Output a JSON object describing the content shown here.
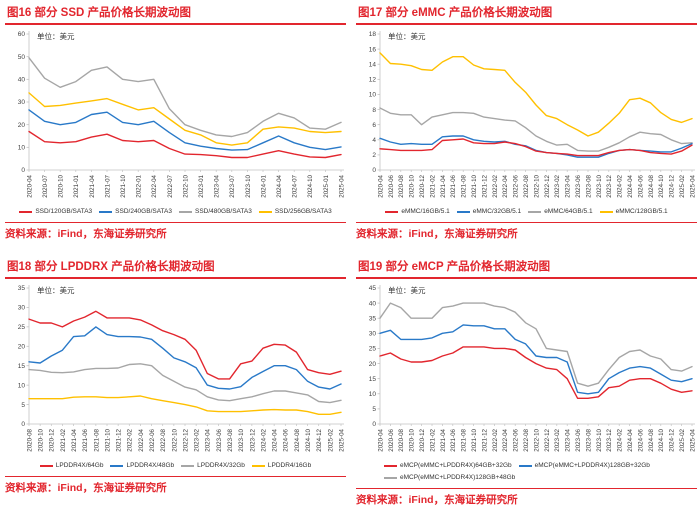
{
  "colors": {
    "accent_red": "#e2262e",
    "axis": "#c3c3c3",
    "tick_text": "#404040",
    "lines": {
      "red": "#e2262e",
      "blue": "#2979c8",
      "gray": "#a6a6a6",
      "yellow": "#ffc000"
    }
  },
  "chart_data": [
    {
      "id": "fig16",
      "type": "line",
      "title": "图16  部分 SSD 产品价格长期波动图",
      "unit": "单位：美元",
      "source": "资料来源：iFind，东海证券研究所",
      "ylim": [
        0,
        60
      ],
      "ytick_step": 10,
      "legend_position": "bottom-center",
      "grid": false,
      "categories": [
        "2020-04",
        "2020-07",
        "2020-10",
        "2021-01",
        "2021-04",
        "2021-07",
        "2021-10",
        "2022-01",
        "2022-04",
        "2022-07",
        "2022-10",
        "2023-01",
        "2023-04",
        "2023-07",
        "2023-10",
        "2024-01",
        "2024-04",
        "2024-07",
        "2024-10",
        "2025-01",
        "2025-04"
      ],
      "series": [
        {
          "name": "SSD/120GB/SATA3",
          "color": "red",
          "values": [
            17,
            12.5,
            12,
            12.5,
            14.5,
            15.8,
            13,
            12.5,
            13,
            9.5,
            7,
            6.8,
            6.3,
            5.5,
            5.5,
            7,
            8.5,
            7,
            5.8,
            5.5,
            6.8
          ]
        },
        {
          "name": "SSD/240GB/SATA3",
          "color": "blue",
          "values": [
            26.5,
            21.5,
            20,
            21,
            24.5,
            25.5,
            21,
            20,
            21.5,
            16.5,
            12,
            10.5,
            9.5,
            8.8,
            9,
            12,
            15,
            12,
            10,
            9,
            10.2
          ]
        },
        {
          "name": "SSD/480GB/SATA3",
          "color": "gray",
          "values": [
            49.5,
            40.5,
            36.5,
            39,
            44,
            45.5,
            40,
            39,
            40,
            27,
            20,
            17.5,
            15.5,
            14.8,
            16.5,
            21.5,
            25,
            23,
            18.5,
            18,
            21
          ]
        },
        {
          "name": "SSD/256GB/SATA3",
          "color": "yellow",
          "values": [
            34,
            28,
            28.5,
            29.5,
            30.5,
            31.5,
            29,
            26.5,
            27.5,
            22.5,
            17.5,
            15.5,
            12,
            11,
            12,
            18,
            19,
            18.5,
            17,
            16.5,
            17
          ]
        }
      ]
    },
    {
      "id": "fig17",
      "type": "line",
      "title": "图17  部分 eMMC 产品价格长期波动图",
      "unit": "单位：美元",
      "source": "资料来源：iFind，东海证券研究所",
      "ylim": [
        0,
        18
      ],
      "ytick_step": 2,
      "legend_position": "bottom-center",
      "grid": false,
      "categories": [
        "2020-04",
        "2020-06",
        "2020-08",
        "2020-10",
        "2020-12",
        "2021-02",
        "2021-04",
        "2021-06",
        "2021-08",
        "2021-10",
        "2021-12",
        "2022-02",
        "2022-04",
        "2022-06",
        "2022-08",
        "2022-10",
        "2022-12",
        "2023-02",
        "2023-04",
        "2023-06",
        "2023-08",
        "2023-10",
        "2023-12",
        "2024-02",
        "2024-04",
        "2024-06",
        "2024-08",
        "2024-10",
        "2024-12",
        "2025-02",
        "2025-04"
      ],
      "series": [
        {
          "name": "eMMC/16GB/5.1",
          "color": "red",
          "values": [
            2.8,
            2.7,
            2.6,
            2.6,
            2.6,
            2.7,
            3.9,
            4.0,
            4.1,
            3.6,
            3.5,
            3.5,
            3.7,
            3.5,
            3.1,
            2.5,
            2.3,
            2.2,
            2.1,
            1.9,
            1.9,
            1.9,
            2.3,
            2.6,
            2.7,
            2.6,
            2.3,
            2.2,
            2.1,
            2.5,
            3.3
          ]
        },
        {
          "name": "eMMC/32GB/5.1",
          "color": "blue",
          "values": [
            4.2,
            3.7,
            3.4,
            3.5,
            3.4,
            3.4,
            4.4,
            4.5,
            4.5,
            4.0,
            3.8,
            3.7,
            3.8,
            3.4,
            3.2,
            2.6,
            2.3,
            2.2,
            2.0,
            1.7,
            1.7,
            1.7,
            2.2,
            2.6,
            2.7,
            2.6,
            2.5,
            2.4,
            2.4,
            2.9,
            3.5
          ]
        },
        {
          "name": "eMMC/64GB/5.1",
          "color": "gray",
          "values": [
            8.2,
            7.5,
            7.3,
            7.3,
            6.0,
            7.0,
            7.3,
            7.6,
            7.6,
            7.5,
            7.0,
            6.8,
            6.6,
            6.5,
            5.6,
            4.5,
            3.8,
            3.3,
            3.4,
            2.6,
            2.5,
            2.5,
            3.0,
            3.6,
            4.4,
            5.0,
            4.8,
            4.7,
            4.0,
            3.5,
            3.6
          ]
        },
        {
          "name": "eMMC/128GB/5.1",
          "color": "yellow",
          "values": [
            15.5,
            14.1,
            14.0,
            13.8,
            13.3,
            13.2,
            14.3,
            15.0,
            15.0,
            13.9,
            13.4,
            13.3,
            13.2,
            11.6,
            10.3,
            8.6,
            7.2,
            6.8,
            6.0,
            5.3,
            4.5,
            5.0,
            6.2,
            7.5,
            9.3,
            9.5,
            8.9,
            7.6,
            6.7,
            6.3,
            6.8
          ]
        }
      ]
    },
    {
      "id": "fig18",
      "type": "line",
      "title": "图18  部分 LPDDRX 产品价格长期波动图",
      "unit": "单位：美元",
      "source": "资料来源：iFind，东海证券研究所",
      "ylim": [
        0,
        35
      ],
      "ytick_step": 5,
      "legend_position": "bottom-center",
      "grid": false,
      "categories": [
        "2020-08",
        "2020-10",
        "2020-12",
        "2021-02",
        "2021-04",
        "2021-06",
        "2021-08",
        "2021-10",
        "2021-12",
        "2022-02",
        "2022-04",
        "2022-06",
        "2022-08",
        "2022-10",
        "2022-12",
        "2023-02",
        "2023-04",
        "2023-06",
        "2023-08",
        "2023-10",
        "2023-12",
        "2024-02",
        "2024-04",
        "2024-06",
        "2024-08",
        "2024-10",
        "2024-12",
        "2025-02",
        "2025-04"
      ],
      "series": [
        {
          "name": "LPDDR4X/64Gb",
          "color": "red",
          "values": [
            27,
            26,
            26,
            25,
            26.5,
            27.5,
            29,
            27.3,
            27.3,
            27.3,
            26.8,
            25.5,
            24,
            23,
            21.8,
            19,
            13,
            11.6,
            11.6,
            15.5,
            16.2,
            19.5,
            20.5,
            20.3,
            18.5,
            14,
            13.2,
            12.8,
            13.6
          ]
        },
        {
          "name": "LPDDR4X/48Gb",
          "color": "blue",
          "values": [
            16,
            15.7,
            17.5,
            19,
            22.5,
            22.7,
            25,
            23,
            22.5,
            22.5,
            22.4,
            21.8,
            19.5,
            17,
            16,
            14.5,
            10,
            9.2,
            9,
            9.6,
            12,
            13.5,
            15,
            15,
            14,
            11,
            9.5,
            9,
            10.3
          ]
        },
        {
          "name": "LPDDR4X/32Gb",
          "color": "gray",
          "values": [
            14,
            13.8,
            13.3,
            13.2,
            13.4,
            14,
            14.3,
            14.3,
            14.4,
            15.3,
            15.5,
            15,
            12.5,
            11,
            9.5,
            8.8,
            7,
            6.2,
            6,
            6.5,
            7,
            7.8,
            8.5,
            8.5,
            8,
            7.5,
            5.8,
            5.5,
            6.1
          ]
        },
        {
          "name": "LPDDR4/16Gb",
          "color": "yellow",
          "values": [
            6.5,
            6.5,
            6.5,
            6.5,
            6.9,
            7,
            7,
            6.8,
            6.8,
            7,
            7.2,
            6.5,
            6,
            5.5,
            5,
            4.4,
            3.4,
            3.2,
            3.2,
            3.2,
            3.4,
            3.6,
            3.7,
            3.6,
            3.6,
            3.2,
            2.5,
            2.5,
            3
          ]
        }
      ]
    },
    {
      "id": "fig19",
      "type": "line",
      "title": "图19  部分 eMCP 产品价格长期波动图",
      "unit": "单位：美元",
      "source": "资料来源：iFind，东海证券研究所",
      "ylim": [
        0,
        45
      ],
      "ytick_step": 5,
      "legend_position": "bottom-left-two-rows",
      "grid": false,
      "categories": [
        "2020-04",
        "2020-06",
        "2020-08",
        "2020-10",
        "2020-12",
        "2021-02",
        "2021-04",
        "2021-06",
        "2021-08",
        "2021-10",
        "2021-12",
        "2022-02",
        "2022-04",
        "2022-06",
        "2022-08",
        "2022-10",
        "2022-12",
        "2023-02",
        "2023-04",
        "2023-06",
        "2023-08",
        "2023-10",
        "2023-12",
        "2024-02",
        "2024-04",
        "2024-06",
        "2024-08",
        "2024-10",
        "2024-12",
        "2025-02",
        "2025-04"
      ],
      "series": [
        {
          "name": "eMCP(eMMC+LPDDR4X)64GB+32Gb",
          "color": "red",
          "values": [
            22.5,
            23.5,
            21.5,
            20.5,
            20.5,
            21,
            22.5,
            23.5,
            25.5,
            25.5,
            25.5,
            25,
            25,
            24.5,
            22,
            20,
            18.5,
            18,
            15,
            8.5,
            8.5,
            9,
            12,
            12.5,
            14.5,
            15,
            15,
            13.5,
            11.5,
            10.5,
            11
          ]
        },
        {
          "name": "eMCP(eMMC+LPDDR4X)128GB+32Gb",
          "color": "blue",
          "values": [
            30,
            31,
            28,
            28,
            28,
            28.5,
            30,
            30.5,
            32.8,
            32.5,
            32.5,
            31.5,
            31.5,
            28,
            26.5,
            22.5,
            22,
            22,
            20.5,
            10.5,
            10,
            10.5,
            15,
            17,
            18.5,
            19,
            18.5,
            16.5,
            14.5,
            14,
            15
          ]
        },
        {
          "name": "eMCP(eMMC+LPDDR4X)128GB+48Gb",
          "color": "gray",
          "values": [
            35,
            40,
            38.5,
            35,
            35,
            35,
            38.5,
            39,
            40,
            40,
            40,
            39,
            38.5,
            37,
            33.5,
            31.5,
            25,
            24.5,
            24,
            13.5,
            12.5,
            13.5,
            18,
            22,
            24,
            24.5,
            22.5,
            21.5,
            18,
            17.5,
            19
          ]
        }
      ]
    }
  ]
}
